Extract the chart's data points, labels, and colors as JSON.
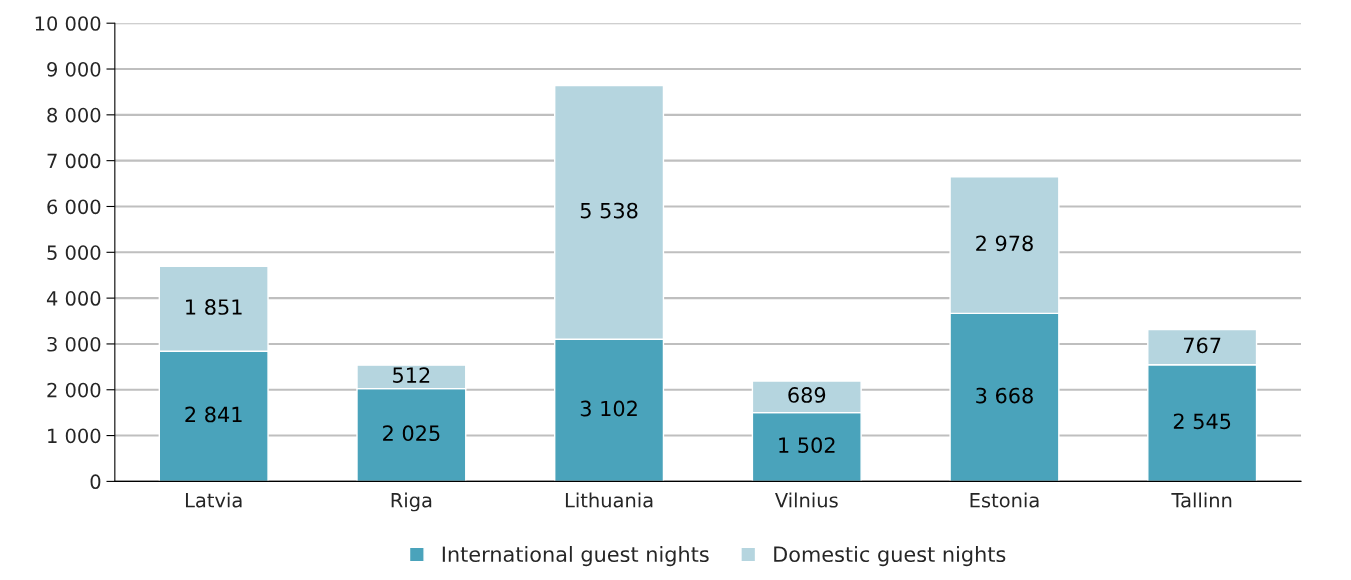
{
  "chart_data": {
    "type": "bar",
    "stacked": true,
    "categories": [
      "Latvia",
      "Riga",
      "Lithuania",
      "Vilnius",
      "Estonia",
      "Tallinn"
    ],
    "series": [
      {
        "name": "International guest nights",
        "color": "#4aa3bb",
        "values": [
          2841,
          2025,
          3102,
          1502,
          3668,
          2545
        ],
        "value_labels": [
          "2 841",
          "2 025",
          "3 102",
          "1 502",
          "3 668",
          "2 545"
        ]
      },
      {
        "name": "Domestic guest nights",
        "color": "#b5d5df",
        "values": [
          1851,
          512,
          5538,
          689,
          2978,
          767
        ],
        "value_labels": [
          "1 851",
          "512",
          "5 538",
          "689",
          "2 978",
          "767"
        ]
      }
    ],
    "ylim": [
      0,
      10000
    ],
    "yticks": [
      0,
      {
        "value": 1000,
        "label": "1 000"
      },
      {
        "value": 2000,
        "label": "2 000"
      },
      {
        "value": 3000,
        "label": "3 000"
      },
      {
        "value": 4000,
        "label": "4 000"
      },
      {
        "value": 5000,
        "label": "5 000"
      },
      {
        "value": 6000,
        "label": "6 000"
      },
      {
        "value": 7000,
        "label": "7 000"
      },
      {
        "value": 8000,
        "label": "8 000"
      },
      {
        "value": 9000,
        "label": "9 000"
      },
      {
        "value": 10000,
        "label": "10 000"
      }
    ],
    "grid": "y",
    "legend": "bottom"
  }
}
